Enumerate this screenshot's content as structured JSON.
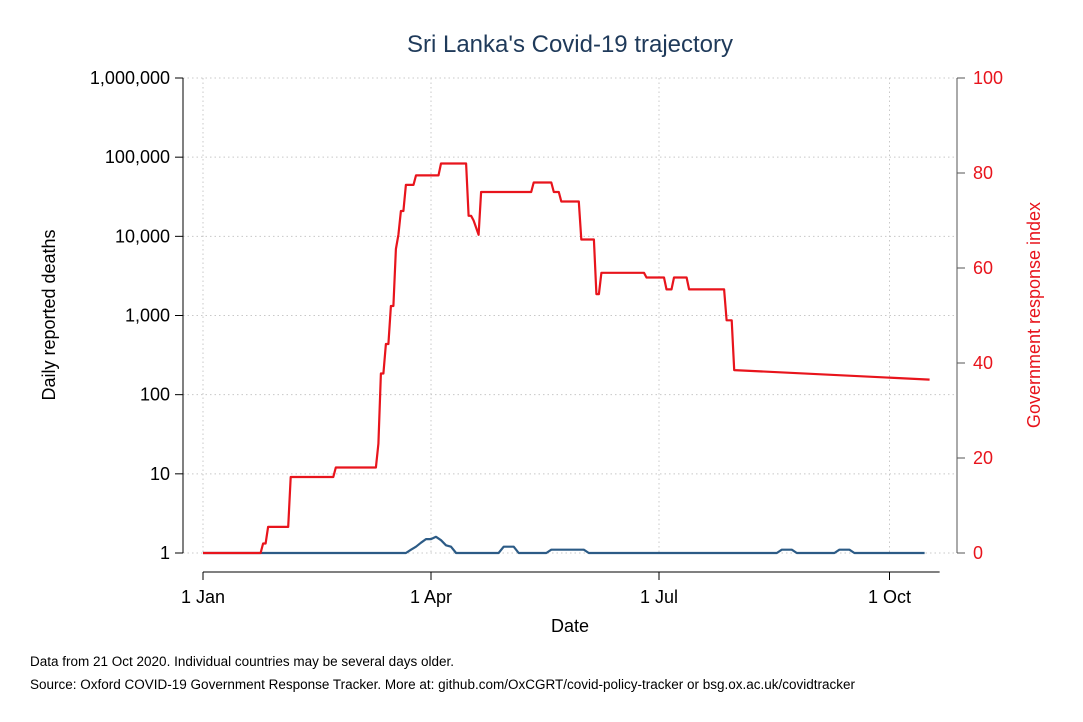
{
  "chart_data": {
    "type": "line",
    "title": "Sri Lanka's Covid-19 trajectory",
    "xlabel": "Date",
    "ylabel_left": "Daily reported deaths",
    "ylabel_right": "Government response index",
    "x_ticks": [
      "1 Jan",
      "1 Apr",
      "1 Jul",
      "1 Oct"
    ],
    "x_tick_days": [
      0,
      91,
      182,
      274
    ],
    "x_range_days": [
      0,
      294
    ],
    "y_left_scale": "log",
    "y_left_ticks": [
      "1",
      "10",
      "100",
      "1,000",
      "10,000",
      "100,000",
      "1,000,000"
    ],
    "y_left_range": [
      1,
      1000000
    ],
    "y_right_ticks": [
      "0",
      "20",
      "40",
      "60",
      "80",
      "100"
    ],
    "y_right_range": [
      0,
      100
    ],
    "grid": true,
    "colors": {
      "deaths": "#2c5b86",
      "response": "#e8141c",
      "title": "#1f3a5a"
    },
    "series": [
      {
        "axis": "left",
        "x": [
          0,
          81,
          83,
          85,
          87,
          89,
          91,
          93,
          95,
          97,
          99,
          101,
          118,
          120,
          124,
          126,
          137,
          139,
          152,
          154,
          229,
          231,
          235,
          237,
          252,
          254,
          258,
          260,
          288
        ],
        "values": [
          1,
          1,
          1.1,
          1.2,
          1.35,
          1.5,
          1.5,
          1.6,
          1.45,
          1.25,
          1.2,
          1,
          1,
          1.2,
          1.2,
          1,
          1,
          1.1,
          1.1,
          1,
          1,
          1.1,
          1.1,
          1,
          1,
          1.1,
          1.1,
          1,
          1
        ]
      },
      {
        "axis": "right",
        "x": [
          0,
          23,
          24,
          25,
          26,
          34,
          35,
          52,
          53,
          69,
          70,
          71,
          72,
          73,
          74,
          75,
          76,
          77,
          78,
          79,
          80,
          81,
          84,
          85,
          94,
          95,
          105,
          106,
          107,
          108,
          110,
          111,
          131,
          132,
          139,
          140,
          142,
          143,
          150,
          151,
          156,
          157,
          158,
          159,
          176,
          177,
          184,
          185,
          187,
          188,
          193,
          194,
          208,
          209,
          211,
          212,
          290
        ],
        "values": [
          0,
          0,
          2,
          2,
          5.5,
          5.5,
          16,
          16,
          18,
          18,
          23,
          37.8,
          37.8,
          44,
          44,
          52,
          52,
          64,
          67,
          72,
          72,
          77.5,
          77.5,
          79.5,
          79.5,
          82,
          82,
          71,
          71,
          70,
          67,
          76,
          76,
          78,
          78,
          76,
          76,
          74,
          74,
          66,
          66,
          54.5,
          54.5,
          59,
          59,
          58,
          58,
          55.5,
          55.5,
          58,
          58,
          55.5,
          55.5,
          49,
          49,
          38.5,
          36.5
        ]
      }
    ],
    "notes": [
      "Data from 21 Oct 2020. Individual countries may be several days older.",
      "Source: Oxford COVID-19 Government Response Tracker. More at: github.com/OxCGRT/covid-policy-tracker or bsg.ox.ac.uk/covidtracker"
    ]
  }
}
